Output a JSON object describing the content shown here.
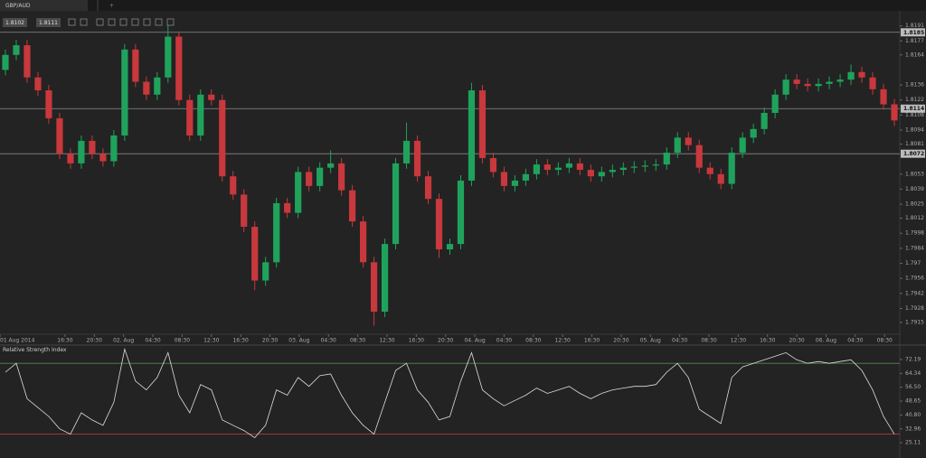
{
  "tab": {
    "title": "GBP/AUD",
    "add": "+"
  },
  "toolbar": {
    "bid": 1.8102,
    "ask": 1.8111
  },
  "chart_data": [
    {
      "type": "candlestick",
      "up_color": "#1fa35c",
      "down_color": "#c8383c",
      "xlim": [
        -0.5,
        82.5
      ],
      "ylim": [
        1.7904,
        1.8205
      ],
      "xticks": [
        {
          "value": -0.5,
          "label": "01 Aug 2014"
        },
        {
          "value": 5.5,
          "label": "16:30"
        },
        {
          "value": 8.2,
          "label": "20:30"
        },
        {
          "value": 10.9,
          "label": "02. Aug"
        },
        {
          "value": 13.6,
          "label": "04:30"
        },
        {
          "value": 16.3,
          "label": "08:30"
        },
        {
          "value": 19,
          "label": "12:30"
        },
        {
          "value": 21.7,
          "label": "16:30"
        },
        {
          "value": 24.4,
          "label": "20:30"
        },
        {
          "value": 27.1,
          "label": "03. Aug"
        },
        {
          "value": 29.8,
          "label": "04:30"
        },
        {
          "value": 32.5,
          "label": "08:30"
        },
        {
          "value": 35.2,
          "label": "12:30"
        },
        {
          "value": 37.9,
          "label": "16:30"
        },
        {
          "value": 40.6,
          "label": "20:30"
        },
        {
          "value": 43.3,
          "label": "04. Aug"
        },
        {
          "value": 46,
          "label": "04:30"
        },
        {
          "value": 48.7,
          "label": "08:30"
        },
        {
          "value": 51.4,
          "label": "12:30"
        },
        {
          "value": 54.1,
          "label": "16:30"
        },
        {
          "value": 56.8,
          "label": "20:30"
        },
        {
          "value": 59.5,
          "label": "05. Aug"
        },
        {
          "value": 62.2,
          "label": "04:30"
        },
        {
          "value": 64.9,
          "label": "08:30"
        },
        {
          "value": 67.6,
          "label": "12:30"
        },
        {
          "value": 70.3,
          "label": "16:30"
        },
        {
          "value": 73,
          "label": "20:30"
        },
        {
          "value": 75.7,
          "label": "06. Aug"
        },
        {
          "value": 78.4,
          "label": "04:30"
        },
        {
          "value": 81.1,
          "label": "08:30"
        }
      ],
      "yticks": [
        1.8191,
        1.8177,
        1.8164,
        1.8136,
        1.8122,
        1.8108,
        1.8094,
        1.8081,
        1.8053,
        1.8039,
        1.8025,
        1.8012,
        1.7998,
        1.7984,
        1.797,
        1.7956,
        1.7942,
        1.7928,
        1.7915
      ],
      "levels": [
        1.8185,
        1.8114,
        1.8072
      ],
      "candles": [
        [
          1.815,
          1.8169,
          1.8145,
          1.8164
        ],
        [
          1.8164,
          1.8178,
          1.8159,
          1.8173
        ],
        [
          1.8173,
          1.8178,
          1.8138,
          1.8143
        ],
        [
          1.8143,
          1.8148,
          1.8126,
          1.8131
        ],
        [
          1.8131,
          1.8136,
          1.81,
          1.8105
        ],
        [
          1.8105,
          1.811,
          1.8067,
          1.8072
        ],
        [
          1.8072,
          1.8077,
          1.8058,
          1.8063
        ],
        [
          1.8063,
          1.8089,
          1.8058,
          1.8084
        ],
        [
          1.8084,
          1.8089,
          1.8067,
          1.8072
        ],
        [
          1.8072,
          1.8077,
          1.806,
          1.8065
        ],
        [
          1.8065,
          1.8094,
          1.806,
          1.8089
        ],
        [
          1.8089,
          1.8174,
          1.8084,
          1.8169
        ],
        [
          1.8169,
          1.8174,
          1.8134,
          1.8139
        ],
        [
          1.8139,
          1.8144,
          1.8122,
          1.8127
        ],
        [
          1.8127,
          1.8148,
          1.8122,
          1.8143
        ],
        [
          1.8143,
          1.8192,
          1.8138,
          1.8181
        ],
        [
          1.8181,
          1.8186,
          1.8117,
          1.8122
        ],
        [
          1.8122,
          1.8127,
          1.8084,
          1.8089
        ],
        [
          1.8089,
          1.8132,
          1.8084,
          1.8127
        ],
        [
          1.8127,
          1.8132,
          1.8117,
          1.8122
        ],
        [
          1.8122,
          1.8127,
          1.8046,
          1.8051
        ],
        [
          1.8051,
          1.8056,
          1.8029,
          1.8034
        ],
        [
          1.8034,
          1.8039,
          1.7999,
          1.8004
        ],
        [
          1.8004,
          1.8009,
          1.7945,
          1.7954
        ],
        [
          1.7954,
          1.7976,
          1.7949,
          1.7971
        ],
        [
          1.7971,
          1.8031,
          1.7966,
          1.8026
        ],
        [
          1.8026,
          1.8031,
          1.8012,
          1.8017
        ],
        [
          1.8017,
          1.806,
          1.8012,
          1.8055
        ],
        [
          1.8055,
          1.806,
          1.8037,
          1.8042
        ],
        [
          1.8042,
          1.8064,
          1.8037,
          1.8059
        ],
        [
          1.8059,
          1.8075,
          1.8054,
          1.8063
        ],
        [
          1.8063,
          1.8068,
          1.8033,
          1.8038
        ],
        [
          1.8038,
          1.8043,
          1.8004,
          1.8009
        ],
        [
          1.8009,
          1.8014,
          1.7966,
          1.7971
        ],
        [
          1.7971,
          1.7976,
          1.7912,
          1.7925
        ],
        [
          1.7925,
          1.7993,
          1.792,
          1.7988
        ],
        [
          1.7988,
          1.8068,
          1.7983,
          1.8063
        ],
        [
          1.8063,
          1.8101,
          1.8058,
          1.8084
        ],
        [
          1.8084,
          1.8089,
          1.8046,
          1.8051
        ],
        [
          1.8051,
          1.8056,
          1.8025,
          1.803
        ],
        [
          1.803,
          1.8035,
          1.7975,
          1.7983
        ],
        [
          1.7983,
          1.7993,
          1.7978,
          1.7988
        ],
        [
          1.7988,
          1.8052,
          1.7983,
          1.8047
        ],
        [
          1.8047,
          1.8138,
          1.8042,
          1.8131
        ],
        [
          1.8131,
          1.8136,
          1.8063,
          1.8068
        ],
        [
          1.8068,
          1.8073,
          1.805,
          1.8055
        ],
        [
          1.8055,
          1.806,
          1.8037,
          1.8042
        ],
        [
          1.8042,
          1.8052,
          1.8037,
          1.8047
        ],
        [
          1.8047,
          1.8058,
          1.8042,
          1.8053
        ],
        [
          1.8053,
          1.8067,
          1.8048,
          1.8062
        ],
        [
          1.8062,
          1.8067,
          1.8052,
          1.8057
        ],
        [
          1.8057,
          1.8064,
          1.8052,
          1.8059
        ],
        [
          1.8059,
          1.8068,
          1.8054,
          1.8063
        ],
        [
          1.8063,
          1.8068,
          1.8052,
          1.8057
        ],
        [
          1.8057,
          1.8062,
          1.8046,
          1.8051
        ],
        [
          1.8051,
          1.806,
          1.8046,
          1.8055
        ],
        [
          1.8055,
          1.8062,
          1.805,
          1.8057
        ],
        [
          1.8057,
          1.8064,
          1.8052,
          1.8059
        ],
        [
          1.8059,
          1.8065,
          1.8054,
          1.806
        ],
        [
          1.806,
          1.8066,
          1.8055,
          1.8061
        ],
        [
          1.8061,
          1.8067,
          1.8056,
          1.8062
        ],
        [
          1.8062,
          1.8078,
          1.8057,
          1.8073
        ],
        [
          1.8073,
          1.8092,
          1.8068,
          1.8087
        ],
        [
          1.8087,
          1.8092,
          1.8075,
          1.808
        ],
        [
          1.808,
          1.8085,
          1.8054,
          1.8059
        ],
        [
          1.8059,
          1.8064,
          1.8048,
          1.8053
        ],
        [
          1.8053,
          1.8058,
          1.8039,
          1.8044
        ],
        [
          1.8044,
          1.8078,
          1.8039,
          1.8073
        ],
        [
          1.8073,
          1.8092,
          1.8068,
          1.8087
        ],
        [
          1.8087,
          1.81,
          1.8082,
          1.8095
        ],
        [
          1.8095,
          1.8115,
          1.809,
          1.811
        ],
        [
          1.811,
          1.8132,
          1.8105,
          1.8127
        ],
        [
          1.8127,
          1.8146,
          1.8122,
          1.8141
        ],
        [
          1.8141,
          1.8146,
          1.8132,
          1.8137
        ],
        [
          1.8137,
          1.8142,
          1.813,
          1.8135
        ],
        [
          1.8135,
          1.8142,
          1.813,
          1.8137
        ],
        [
          1.8137,
          1.8144,
          1.8132,
          1.8139
        ],
        [
          1.8139,
          1.8146,
          1.8134,
          1.8141
        ],
        [
          1.8141,
          1.8155,
          1.8136,
          1.8148
        ],
        [
          1.8148,
          1.8153,
          1.8138,
          1.8143
        ],
        [
          1.8143,
          1.8148,
          1.8127,
          1.8132
        ],
        [
          1.8132,
          1.8137,
          1.8113,
          1.8118
        ],
        [
          1.8118,
          1.8123,
          1.8098,
          1.8103
        ]
      ]
    },
    {
      "type": "line",
      "title": "Relative Strength Index",
      "color": "#dddddd",
      "xlim": [
        -0.5,
        82.5
      ],
      "ylim": [
        16.5,
        79.8
      ],
      "yticks": [
        72.19,
        64.34,
        {
          "value": 56.5,
          "label": "56.50"
        },
        48.65,
        {
          "value": 40.8,
          "label": "40.80"
        },
        32.96,
        25.11
      ],
      "levels": [
        {
          "value": 70,
          "color": "#4f8a4f"
        },
        {
          "value": 30,
          "color": "#b23a3a"
        }
      ],
      "values": [
        65,
        70,
        50,
        45,
        40,
        33,
        30,
        42,
        38,
        35,
        48,
        78,
        60,
        55,
        62,
        76,
        52,
        42,
        58,
        55,
        38,
        35,
        32,
        28,
        35,
        55,
        52,
        62,
        57,
        63,
        64,
        52,
        42,
        35,
        30,
        48,
        66,
        70,
        55,
        48,
        38,
        40,
        60,
        76,
        55,
        50,
        46,
        49,
        52,
        56,
        53,
        55,
        57,
        53,
        50,
        53,
        55,
        56,
        57,
        57,
        58,
        65,
        70,
        62,
        44,
        40,
        36,
        62,
        68,
        70,
        72,
        74,
        76,
        72,
        70,
        71,
        70,
        71,
        72,
        66,
        55,
        40,
        30
      ]
    }
  ]
}
